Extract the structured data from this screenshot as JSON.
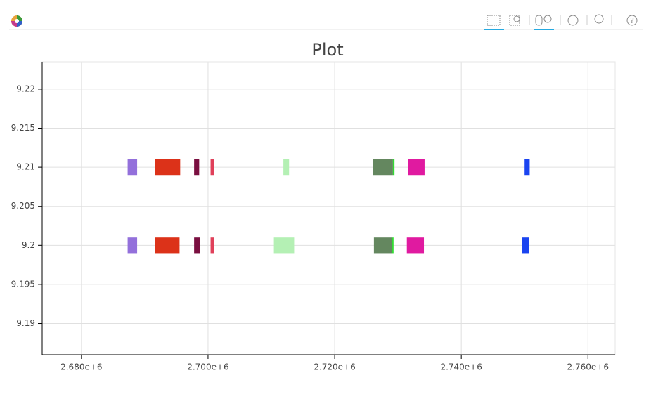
{
  "chart_data": {
    "type": "rect",
    "title": "Plot",
    "xlim": [
      2673800,
      2764300
    ],
    "ylim": [
      9.186,
      9.2235
    ],
    "xticks": [
      {
        "value": 2680000,
        "label": "2.680e+6"
      },
      {
        "value": 2700000,
        "label": "2.700e+6"
      },
      {
        "value": 2720000,
        "label": "2.720e+6"
      },
      {
        "value": 2740000,
        "label": "2.740e+6"
      },
      {
        "value": 2760000,
        "label": "2.760e+6"
      }
    ],
    "yticks": [
      9.19,
      9.195,
      9.2,
      9.205,
      9.21,
      9.215,
      9.22
    ],
    "grid": true,
    "bar_height": 0.002,
    "rects": [
      {
        "color": "#9370DB",
        "x0": 2687300,
        "x1": 2688800,
        "y": 9.21
      },
      {
        "color": "#DC3219",
        "x0": 2691600,
        "x1": 2695600,
        "y": 9.21
      },
      {
        "color": "#7A0F40",
        "x0": 2697800,
        "x1": 2698600,
        "y": 9.21
      },
      {
        "color": "#E0405A",
        "x0": 2700400,
        "x1": 2701000,
        "y": 9.21
      },
      {
        "color": "#B4F0B4",
        "x0": 2711900,
        "x1": 2712800,
        "y": 9.21
      },
      {
        "color": "#64875F",
        "x0": 2726100,
        "x1": 2729200,
        "y": 9.21
      },
      {
        "color": "#32DC32",
        "x0": 2729200,
        "x1": 2729450,
        "y": 9.21
      },
      {
        "color": "#E01AA0",
        "x0": 2731600,
        "x1": 2734200,
        "y": 9.21
      },
      {
        "color": "#1A44F0",
        "x0": 2750000,
        "x1": 2750800,
        "y": 9.21
      },
      {
        "color": "#9370DB",
        "x0": 2687300,
        "x1": 2688800,
        "y": 9.2
      },
      {
        "color": "#DC3219",
        "x0": 2691600,
        "x1": 2695500,
        "y": 9.2
      },
      {
        "color": "#7A0F40",
        "x0": 2697800,
        "x1": 2698700,
        "y": 9.2
      },
      {
        "color": "#E0405A",
        "x0": 2700400,
        "x1": 2700900,
        "y": 9.2
      },
      {
        "color": "#B4F0B4",
        "x0": 2710400,
        "x1": 2713600,
        "y": 9.2
      },
      {
        "color": "#64875F",
        "x0": 2726200,
        "x1": 2729100,
        "y": 9.2
      },
      {
        "color": "#32DC32",
        "x0": 2729100,
        "x1": 2729300,
        "y": 9.2
      },
      {
        "color": "#E01AA0",
        "x0": 2731400,
        "x1": 2734100,
        "y": 9.2
      },
      {
        "color": "#1A44F0",
        "x0": 2749600,
        "x1": 2750700,
        "y": 9.2
      }
    ]
  }
}
